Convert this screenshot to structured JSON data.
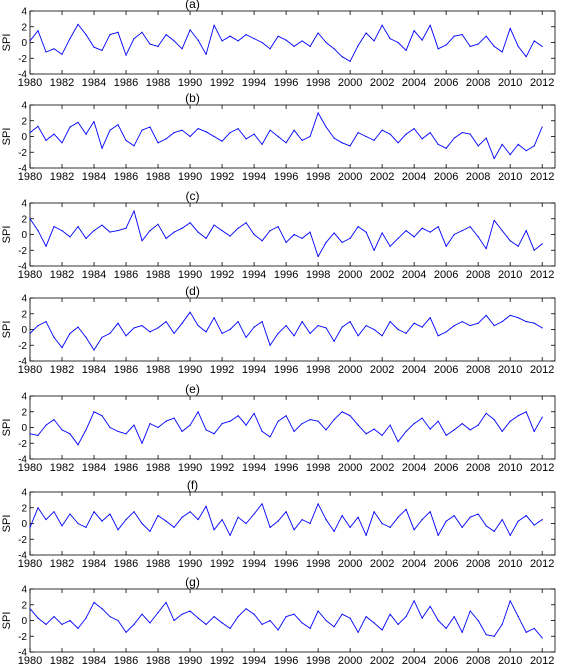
{
  "figure": {
    "line_color": "#0000ff",
    "axis_color": "#000000",
    "background": "#ffffff"
  },
  "chart_data": [
    {
      "type": "line",
      "title": "(a)",
      "ylabel": "SPI",
      "xlim": [
        1980,
        2012.8
      ],
      "ylim": [
        -4,
        4
      ],
      "xticks": [
        1980,
        1982,
        1984,
        1986,
        1988,
        1990,
        1992,
        1994,
        1996,
        1998,
        2000,
        2002,
        2004,
        2006,
        2008,
        2010,
        2012
      ],
      "yticks": [
        -4,
        -2,
        0,
        2,
        4
      ],
      "grid": false,
      "x": [
        1980.0,
        1980.5,
        1981.0,
        1981.5,
        1982.0,
        1982.5,
        1983.0,
        1983.5,
        1984.0,
        1984.5,
        1985.0,
        1985.5,
        1986.0,
        1986.5,
        1987.0,
        1987.5,
        1988.0,
        1988.5,
        1989.0,
        1989.5,
        1990.0,
        1990.5,
        1991.0,
        1991.5,
        1992.0,
        1992.5,
        1993.0,
        1993.5,
        1994.0,
        1994.5,
        1995.0,
        1995.5,
        1996.0,
        1996.5,
        1997.0,
        1997.5,
        1998.0,
        1998.5,
        1999.0,
        1999.5,
        2000.0,
        2000.5,
        2001.0,
        2001.5,
        2002.0,
        2002.5,
        2003.0,
        2003.5,
        2004.0,
        2004.5,
        2005.0,
        2005.5,
        2006.0,
        2006.5,
        2007.0,
        2007.5,
        2008.0,
        2008.5,
        2009.0,
        2009.5,
        2010.0,
        2010.5,
        2011.0,
        2011.5,
        2012.0
      ],
      "values": [
        0.2,
        1.5,
        -1.2,
        -0.8,
        -1.5,
        0.5,
        2.3,
        1.0,
        -0.6,
        -1.0,
        1.0,
        1.3,
        -1.6,
        0.5,
        1.3,
        -0.2,
        -0.5,
        1.0,
        0.2,
        -0.8,
        1.6,
        0.3,
        -1.5,
        2.2,
        0.2,
        0.8,
        0.2,
        1.0,
        0.5,
        0.0,
        -0.8,
        0.8,
        0.3,
        -0.5,
        0.2,
        -0.5,
        1.2,
        0.0,
        -0.8,
        -1.8,
        -2.4,
        -0.4,
        1.2,
        0.2,
        2.2,
        0.5,
        0.0,
        -1.0,
        1.5,
        0.3,
        2.2,
        -0.8,
        -0.3,
        0.8,
        1.0,
        -0.5,
        -0.2,
        0.8,
        -0.5,
        -1.2,
        1.8,
        -0.5,
        -1.8,
        0.2,
        -0.5
      ]
    },
    {
      "type": "line",
      "title": "(b)",
      "ylabel": "SPI",
      "xlim": [
        1980,
        2012.8
      ],
      "ylim": [
        -4,
        4
      ],
      "xticks": [
        1980,
        1982,
        1984,
        1986,
        1988,
        1990,
        1992,
        1994,
        1996,
        1998,
        2000,
        2002,
        2004,
        2006,
        2008,
        2010,
        2012
      ],
      "yticks": [
        -4,
        -2,
        0,
        2,
        4
      ],
      "grid": false,
      "x": [
        1980.0,
        1980.5,
        1981.0,
        1981.5,
        1982.0,
        1982.5,
        1983.0,
        1983.5,
        1984.0,
        1984.5,
        1985.0,
        1985.5,
        1986.0,
        1986.5,
        1987.0,
        1987.5,
        1988.0,
        1988.5,
        1989.0,
        1989.5,
        1990.0,
        1990.5,
        1991.0,
        1991.5,
        1992.0,
        1992.5,
        1993.0,
        1993.5,
        1994.0,
        1994.5,
        1995.0,
        1995.5,
        1996.0,
        1996.5,
        1997.0,
        1997.5,
        1998.0,
        1998.5,
        1999.0,
        1999.5,
        2000.0,
        2000.5,
        2001.0,
        2001.5,
        2002.0,
        2002.5,
        2003.0,
        2003.5,
        2004.0,
        2004.5,
        2005.0,
        2005.5,
        2006.0,
        2006.5,
        2007.0,
        2007.5,
        2008.0,
        2008.5,
        2009.0,
        2009.5,
        2010.0,
        2010.5,
        2011.0,
        2011.5,
        2012.0
      ],
      "values": [
        0.5,
        1.3,
        -0.5,
        0.3,
        -0.8,
        1.2,
        1.8,
        0.3,
        1.9,
        -1.5,
        0.8,
        1.5,
        -0.5,
        -1.2,
        0.8,
        1.2,
        -0.8,
        -0.3,
        0.5,
        0.8,
        0.0,
        1.0,
        0.6,
        0.0,
        -0.6,
        0.5,
        1.0,
        -0.3,
        0.3,
        -1.0,
        0.8,
        0.0,
        -0.8,
        0.8,
        -0.5,
        0.0,
        3.0,
        1.2,
        -0.2,
        -0.8,
        -1.2,
        0.5,
        0.0,
        -0.5,
        0.8,
        0.3,
        -0.8,
        0.3,
        1.0,
        -0.3,
        0.5,
        -1.0,
        -1.5,
        -0.2,
        0.5,
        0.3,
        -1.2,
        -0.2,
        -2.8,
        -1.0,
        -2.3,
        -1.0,
        -1.8,
        -1.2,
        1.2
      ]
    },
    {
      "type": "line",
      "title": "(c)",
      "ylabel": "SPI",
      "xlim": [
        1980,
        2012.8
      ],
      "ylim": [
        -4,
        4
      ],
      "xticks": [
        1980,
        1982,
        1984,
        1986,
        1988,
        1990,
        1992,
        1994,
        1996,
        1998,
        2000,
        2002,
        2004,
        2006,
        2008,
        2010,
        2012
      ],
      "yticks": [
        -4,
        -2,
        0,
        2,
        4
      ],
      "grid": false,
      "x": [
        1980.0,
        1980.5,
        1981.0,
        1981.5,
        1982.0,
        1982.5,
        1983.0,
        1983.5,
        1984.0,
        1984.5,
        1985.0,
        1985.5,
        1986.0,
        1986.5,
        1987.0,
        1987.5,
        1988.0,
        1988.5,
        1989.0,
        1989.5,
        1990.0,
        1990.5,
        1991.0,
        1991.5,
        1992.0,
        1992.5,
        1993.0,
        1993.5,
        1994.0,
        1994.5,
        1995.0,
        1995.5,
        1996.0,
        1996.5,
        1997.0,
        1997.5,
        1998.0,
        1998.5,
        1999.0,
        1999.5,
        2000.0,
        2000.5,
        2001.0,
        2001.5,
        2002.0,
        2002.5,
        2003.0,
        2003.5,
        2004.0,
        2004.5,
        2005.0,
        2005.5,
        2006.0,
        2006.5,
        2007.0,
        2007.5,
        2008.0,
        2008.5,
        2009.0,
        2009.5,
        2010.0,
        2010.5,
        2011.0,
        2011.5,
        2012.0
      ],
      "values": [
        2.0,
        0.5,
        -1.5,
        1.0,
        0.5,
        -0.3,
        1.0,
        -0.5,
        0.5,
        1.2,
        0.3,
        0.5,
        0.8,
        3.0,
        -0.8,
        0.5,
        1.3,
        -0.5,
        0.3,
        0.8,
        1.5,
        0.3,
        -0.5,
        1.2,
        0.5,
        -0.2,
        0.8,
        1.5,
        0.0,
        -0.8,
        0.5,
        1.0,
        -1.0,
        0.0,
        -0.5,
        0.3,
        -2.8,
        -1.0,
        0.2,
        -1.0,
        -0.5,
        1.0,
        0.3,
        -2.0,
        0.2,
        -1.5,
        -0.5,
        0.5,
        -0.3,
        0.8,
        0.3,
        1.0,
        -1.5,
        0.0,
        0.5,
        1.0,
        -0.3,
        -1.8,
        1.8,
        0.5,
        -0.8,
        -1.5,
        0.5,
        -2.0,
        -1.2
      ]
    },
    {
      "type": "line",
      "title": "(d)",
      "ylabel": "SPI",
      "xlim": [
        1980,
        2012.8
      ],
      "ylim": [
        -4,
        4
      ],
      "xticks": [
        1980,
        1982,
        1984,
        1986,
        1988,
        1990,
        1992,
        1994,
        1996,
        1998,
        2000,
        2002,
        2004,
        2006,
        2008,
        2010,
        2012
      ],
      "yticks": [
        -4,
        -2,
        0,
        2,
        4
      ],
      "grid": false,
      "x": [
        1980.0,
        1980.5,
        1981.0,
        1981.5,
        1982.0,
        1982.5,
        1983.0,
        1983.5,
        1984.0,
        1984.5,
        1985.0,
        1985.5,
        1986.0,
        1986.5,
        1987.0,
        1987.5,
        1988.0,
        1988.5,
        1989.0,
        1989.5,
        1990.0,
        1990.5,
        1991.0,
        1991.5,
        1992.0,
        1992.5,
        1993.0,
        1993.5,
        1994.0,
        1994.5,
        1995.0,
        1995.5,
        1996.0,
        1996.5,
        1997.0,
        1997.5,
        1998.0,
        1998.5,
        1999.0,
        1999.5,
        2000.0,
        2000.5,
        2001.0,
        2001.5,
        2002.0,
        2002.5,
        2003.0,
        2003.5,
        2004.0,
        2004.5,
        2005.0,
        2005.5,
        2006.0,
        2006.5,
        2007.0,
        2007.5,
        2008.0,
        2008.5,
        2009.0,
        2009.5,
        2010.0,
        2010.5,
        2011.0,
        2011.5,
        2012.0
      ],
      "values": [
        -0.5,
        0.5,
        1.0,
        -1.0,
        -2.3,
        -0.5,
        0.3,
        -1.0,
        -2.6,
        -1.0,
        -0.5,
        0.8,
        -0.8,
        0.2,
        0.5,
        -0.3,
        0.2,
        1.0,
        -0.5,
        0.8,
        2.2,
        0.5,
        -0.3,
        1.5,
        -0.5,
        0.0,
        1.0,
        -1.0,
        0.3,
        1.0,
        -2.0,
        -0.5,
        0.5,
        -0.8,
        1.0,
        -0.5,
        0.5,
        0.2,
        -1.5,
        0.3,
        1.0,
        -0.8,
        0.5,
        0.0,
        -0.8,
        1.0,
        0.0,
        -0.5,
        0.8,
        0.3,
        1.5,
        -0.8,
        -0.3,
        0.5,
        1.0,
        0.5,
        0.8,
        1.8,
        0.5,
        1.0,
        1.8,
        1.5,
        1.0,
        0.8,
        0.2
      ]
    },
    {
      "type": "line",
      "title": "(e)",
      "ylabel": "SPI",
      "xlim": [
        1980,
        2012.8
      ],
      "ylim": [
        -4,
        4
      ],
      "xticks": [
        1980,
        1982,
        1984,
        1986,
        1988,
        1990,
        1992,
        1994,
        1996,
        1998,
        2000,
        2002,
        2004,
        2006,
        2008,
        2010,
        2012
      ],
      "yticks": [
        -4,
        -2,
        0,
        2,
        4
      ],
      "grid": false,
      "x": [
        1980.0,
        1980.5,
        1981.0,
        1981.5,
        1982.0,
        1982.5,
        1983.0,
        1983.5,
        1984.0,
        1984.5,
        1985.0,
        1985.5,
        1986.0,
        1986.5,
        1987.0,
        1987.5,
        1988.0,
        1988.5,
        1989.0,
        1989.5,
        1990.0,
        1990.5,
        1991.0,
        1991.5,
        1992.0,
        1992.5,
        1993.0,
        1993.5,
        1994.0,
        1994.5,
        1995.0,
        1995.5,
        1996.0,
        1996.5,
        1997.0,
        1997.5,
        1998.0,
        1998.5,
        1999.0,
        1999.5,
        2000.0,
        2000.5,
        2001.0,
        2001.5,
        2002.0,
        2002.5,
        2003.0,
        2003.5,
        2004.0,
        2004.5,
        2005.0,
        2005.5,
        2006.0,
        2006.5,
        2007.0,
        2007.5,
        2008.0,
        2008.5,
        2009.0,
        2009.5,
        2010.0,
        2010.5,
        2011.0,
        2011.5,
        2012.0
      ],
      "values": [
        -0.8,
        -1.0,
        0.3,
        1.0,
        -0.3,
        -0.8,
        -2.2,
        -0.3,
        2.0,
        1.5,
        0.0,
        -0.5,
        -0.8,
        0.3,
        -2.0,
        0.5,
        0.0,
        0.8,
        1.2,
        -0.5,
        0.3,
        2.0,
        -0.3,
        -0.8,
        0.5,
        0.8,
        1.5,
        0.3,
        1.8,
        -0.5,
        -1.2,
        0.8,
        1.5,
        -0.5,
        0.5,
        1.0,
        0.8,
        -0.3,
        1.0,
        2.0,
        1.5,
        0.3,
        -0.8,
        -0.2,
        -1.0,
        0.3,
        -1.8,
        -0.5,
        0.5,
        1.2,
        -0.2,
        0.8,
        -1.0,
        -0.3,
        0.5,
        -0.3,
        0.3,
        1.8,
        1.0,
        -0.5,
        0.8,
        1.5,
        2.0,
        -0.5,
        1.3
      ]
    },
    {
      "type": "line",
      "title": "(f)",
      "ylabel": "SPI",
      "xlim": [
        1980,
        2012.8
      ],
      "ylim": [
        -4,
        4
      ],
      "xticks": [
        1980,
        1982,
        1984,
        1986,
        1988,
        1990,
        1992,
        1994,
        1996,
        1998,
        2000,
        2002,
        2004,
        2006,
        2008,
        2010,
        2012
      ],
      "yticks": [
        -4,
        -2,
        0,
        2,
        4
      ],
      "grid": false,
      "x": [
        1980.0,
        1980.5,
        1981.0,
        1981.5,
        1982.0,
        1982.5,
        1983.0,
        1983.5,
        1984.0,
        1984.5,
        1985.0,
        1985.5,
        1986.0,
        1986.5,
        1987.0,
        1987.5,
        1988.0,
        1988.5,
        1989.0,
        1989.5,
        1990.0,
        1990.5,
        1991.0,
        1991.5,
        1992.0,
        1992.5,
        1993.0,
        1993.5,
        1994.0,
        1994.5,
        1995.0,
        1995.5,
        1996.0,
        1996.5,
        1997.0,
        1997.5,
        1998.0,
        1998.5,
        1999.0,
        1999.5,
        2000.0,
        2000.5,
        2001.0,
        2001.5,
        2002.0,
        2002.5,
        2003.0,
        2003.5,
        2004.0,
        2004.5,
        2005.0,
        2005.5,
        2006.0,
        2006.5,
        2007.0,
        2007.5,
        2008.0,
        2008.5,
        2009.0,
        2009.5,
        2010.0,
        2010.5,
        2011.0,
        2011.5,
        2012.0
      ],
      "values": [
        -0.5,
        2.0,
        0.5,
        1.5,
        -0.3,
        1.2,
        0.0,
        -0.5,
        1.5,
        0.3,
        1.2,
        -0.8,
        0.5,
        1.5,
        0.0,
        -1.0,
        1.0,
        0.3,
        -0.5,
        0.8,
        1.5,
        0.5,
        2.2,
        -0.8,
        0.5,
        -1.5,
        0.8,
        0.0,
        1.2,
        2.5,
        -0.5,
        0.3,
        1.5,
        -0.8,
        0.5,
        0.0,
        2.5,
        0.5,
        -1.0,
        1.0,
        -0.5,
        0.8,
        -1.5,
        1.5,
        0.0,
        -0.5,
        0.8,
        1.8,
        -0.8,
        0.5,
        1.5,
        -1.5,
        0.3,
        1.0,
        -0.5,
        0.8,
        1.2,
        -0.3,
        -1.0,
        0.5,
        -1.5,
        0.3,
        1.0,
        -0.2,
        0.5
      ]
    },
    {
      "type": "line",
      "title": "(g)",
      "ylabel": "SPI",
      "xlim": [
        1980,
        2012.8
      ],
      "ylim": [
        -4,
        4
      ],
      "xticks": [
        1980,
        1982,
        1984,
        1986,
        1988,
        1990,
        1992,
        1994,
        1996,
        1998,
        2000,
        2002,
        2004,
        2006,
        2008,
        2010,
        2012
      ],
      "yticks": [
        -4,
        -2,
        0,
        2,
        4
      ],
      "grid": false,
      "x": [
        1980.0,
        1980.5,
        1981.0,
        1981.5,
        1982.0,
        1982.5,
        1983.0,
        1983.5,
        1984.0,
        1984.5,
        1985.0,
        1985.5,
        1986.0,
        1986.5,
        1987.0,
        1987.5,
        1988.0,
        1988.5,
        1989.0,
        1989.5,
        1990.0,
        1990.5,
        1991.0,
        1991.5,
        1992.0,
        1992.5,
        1993.0,
        1993.5,
        1994.0,
        1994.5,
        1995.0,
        1995.5,
        1996.0,
        1996.5,
        1997.0,
        1997.5,
        1998.0,
        1998.5,
        1999.0,
        1999.5,
        2000.0,
        2000.5,
        2001.0,
        2001.5,
        2002.0,
        2002.5,
        2003.0,
        2003.5,
        2004.0,
        2004.5,
        2005.0,
        2005.5,
        2006.0,
        2006.5,
        2007.0,
        2007.5,
        2008.0,
        2008.5,
        2009.0,
        2009.5,
        2010.0,
        2010.5,
        2011.0,
        2011.5,
        2012.0
      ],
      "values": [
        1.5,
        0.3,
        -0.5,
        0.5,
        -0.5,
        0.0,
        -1.0,
        0.3,
        2.3,
        1.5,
        0.5,
        0.0,
        -1.5,
        -0.5,
        0.8,
        -0.3,
        1.0,
        2.3,
        0.0,
        0.8,
        1.2,
        0.3,
        -0.5,
        0.5,
        -0.3,
        -1.0,
        0.5,
        1.5,
        0.8,
        -0.5,
        0.0,
        -1.2,
        0.5,
        0.8,
        -0.3,
        -1.0,
        1.2,
        0.0,
        -0.8,
        0.8,
        0.3,
        -1.5,
        0.5,
        -0.3,
        -1.2,
        0.8,
        -0.5,
        0.5,
        2.5,
        0.3,
        1.8,
        0.0,
        -1.0,
        0.5,
        -1.5,
        1.2,
        0.0,
        -1.8,
        -2.0,
        -0.5,
        2.5,
        0.5,
        -1.5,
        -1.0,
        -2.2
      ]
    }
  ]
}
